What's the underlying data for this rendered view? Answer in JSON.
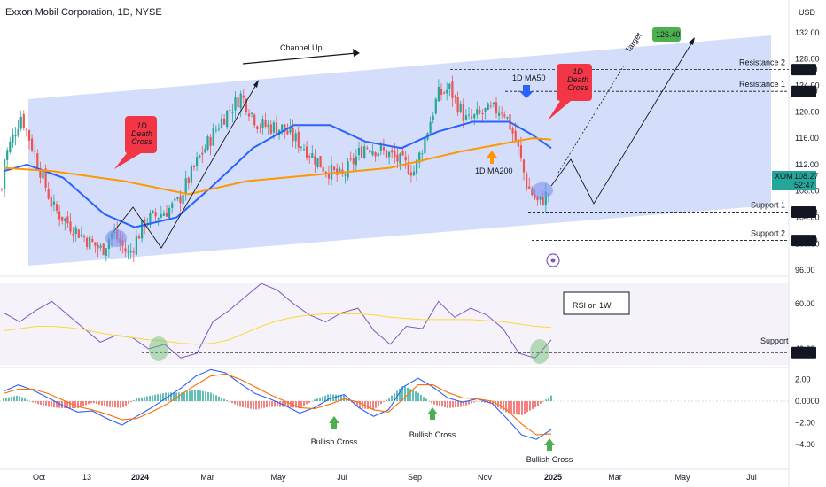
{
  "header": {
    "title": "Exxon Mobil Corporation, 1D, NYSE",
    "currency": "USD"
  },
  "colors": {
    "up": "#26a69a",
    "down": "#ef5350",
    "ma50": "#2962ff",
    "ma200": "#ff9800",
    "channel": "#c5d3f8",
    "rsi": "#7e57c2",
    "rsi_ma": "#fdd835",
    "macd": "#2962ff",
    "signal": "#ff6d00",
    "green_badge": "#4caf50",
    "red_callout": "#f23645"
  },
  "chart_data": [
    {
      "type": "candlestick",
      "title": "Exxon Mobil Corporation, 1D, NYSE",
      "ylim": [
        93,
        134
      ],
      "y_ticks": [
        96.0,
        100.0,
        104.0,
        108.0,
        112.0,
        116.0,
        120.0,
        124.0,
        128.0,
        132.0
      ],
      "x_ticks": [
        "Oct",
        "13",
        "2024",
        "Mar",
        "May",
        "Jul",
        "Sep",
        "Nov",
        "2025",
        "Mar",
        "May",
        "Jul"
      ],
      "close_path": [
        [
          "2023-09-20",
          112.5
        ],
        [
          "2023-10-05",
          119.5
        ],
        [
          "2023-10-18",
          113.0
        ],
        [
          "2023-11-01",
          105.5
        ],
        [
          "2023-11-15",
          103.0
        ],
        [
          "2023-12-01",
          100.5
        ],
        [
          "2023-12-13",
          99.0
        ],
        [
          "2023-12-22",
          101.8
        ],
        [
          "2024-01-05",
          98.2
        ],
        [
          "2024-01-19",
          103.5
        ],
        [
          "2024-02-01",
          104.5
        ],
        [
          "2024-02-15",
          106.0
        ],
        [
          "2024-03-05",
          113.0
        ],
        [
          "2024-03-25",
          119.0
        ],
        [
          "2024-04-10",
          122.5
        ],
        [
          "2024-04-25",
          118.0
        ],
        [
          "2024-05-15",
          117.5
        ],
        [
          "2024-06-01",
          115.0
        ],
        [
          "2024-06-20",
          111.5
        ],
        [
          "2024-07-05",
          110.0
        ],
        [
          "2024-07-25",
          115.0
        ],
        [
          "2024-08-15",
          113.5
        ],
        [
          "2024-09-05",
          111.0
        ],
        [
          "2024-09-15",
          116.5
        ],
        [
          "2024-09-25",
          122.5
        ],
        [
          "2024-10-05",
          123.5
        ],
        [
          "2024-10-20",
          118.5
        ],
        [
          "2024-11-05",
          120.0
        ],
        [
          "2024-11-20",
          120.5
        ],
        [
          "2024-12-01",
          115.5
        ],
        [
          "2024-12-10",
          109.0
        ],
        [
          "2024-12-20",
          106.0
        ],
        [
          "2024-12-31",
          108.27
        ]
      ],
      "series": [
        {
          "name": "1D MA50",
          "values": [
            [
              "2023-09-20",
              111.0
            ],
            [
              "2023-10-10",
              112.0
            ],
            [
              "2023-11-10",
              110.0
            ],
            [
              "2023-12-15",
              104.5
            ],
            [
              "2024-01-10",
              102.5
            ],
            [
              "2024-02-15",
              104.0
            ],
            [
              "2024-03-15",
              108.5
            ],
            [
              "2024-04-20",
              114.5
            ],
            [
              "2024-05-25",
              118.0
            ],
            [
              "2024-06-25",
              118.0
            ],
            [
              "2024-07-25",
              115.5
            ],
            [
              "2024-08-25",
              114.5
            ],
            [
              "2024-09-25",
              117.0
            ],
            [
              "2024-10-25",
              118.5
            ],
            [
              "2024-11-25",
              118.5
            ],
            [
              "2024-12-15",
              116.5
            ],
            [
              "2024-12-31",
              114.5
            ]
          ]
        },
        {
          "name": "1D MA200",
          "values": [
            [
              "2023-09-20",
              111.5
            ],
            [
              "2023-11-01",
              111.0
            ],
            [
              "2024-01-01",
              109.5
            ],
            [
              "2024-02-25",
              107.5
            ],
            [
              "2024-04-15",
              109.5
            ],
            [
              "2024-06-15",
              110.5
            ],
            [
              "2024-08-15",
              111.5
            ],
            [
              "2024-10-15",
              114.0
            ],
            [
              "2024-12-15",
              116.0
            ],
            [
              "2024-12-31",
              115.8
            ]
          ]
        }
      ],
      "annotations": {
        "channel_up": "Channel Up",
        "death_cross_1": "1D\nDeath\nCross",
        "death_cross_2": "1D\nDeath\nCross",
        "ma50": "1D MA50",
        "ma200": "1D MA200",
        "target": "Target",
        "target_value": "126.40"
      },
      "levels": [
        {
          "label": "Resistance 2",
          "value": 126.4,
          "price_label": "126.40"
        },
        {
          "label": "Resistance 1",
          "value": 123.1,
          "price_label": "123.10"
        },
        {
          "label": "Support 1",
          "value": 104.8,
          "price_label": "104.80"
        },
        {
          "label": "Support 2",
          "value": 100.5,
          "price_label": "100.50"
        }
      ],
      "last_price": {
        "symbol": "XOM",
        "price": "108.27",
        "countdown": "52:47"
      }
    },
    {
      "type": "line",
      "title": "RSI on 1W",
      "ylim": [
        30,
        72
      ],
      "y_ticks": [
        40,
        60
      ],
      "y_tick_labels": [
        "40.00",
        "60.00"
      ],
      "series": [
        {
          "values": [
            56,
            52,
            57,
            61,
            55,
            49,
            43,
            46,
            45,
            40,
            42,
            36,
            38,
            52,
            57,
            63,
            69,
            66,
            60,
            55,
            52,
            56,
            58,
            48,
            42,
            50,
            49,
            61,
            54,
            58,
            55,
            49,
            38,
            36,
            44
          ]
        },
        {
          "values": [
            48,
            49,
            50,
            50,
            49.5,
            48.5,
            47,
            46,
            45,
            44,
            43.5,
            42.5,
            42,
            42.5,
            44,
            47,
            50,
            52.5,
            54,
            55,
            55.5,
            55.5,
            55.5,
            55,
            54,
            53.5,
            53,
            53,
            53,
            53,
            52.5,
            52,
            51,
            50,
            49.5
          ]
        }
      ],
      "support": {
        "label": "Support",
        "value": 38.35,
        "price_label": "38.35"
      }
    },
    {
      "type": "line",
      "title": "MACD",
      "ylim": [
        -5,
        3
      ],
      "y_ticks": [
        2,
        0,
        -2,
        -4
      ],
      "y_tick_labels": [
        "2.00",
        "0.0000",
        "−2.00",
        "−4.00"
      ],
      "series": [
        {
          "values": [
            0.9,
            1.5,
            1.0,
            0.3,
            -0.4,
            -1.0,
            -0.9,
            -1.6,
            -2.2,
            -1.4,
            -0.6,
            0.3,
            1.2,
            2.3,
            2.9,
            2.6,
            1.6,
            0.7,
            0.2,
            -0.4,
            -1.1,
            -0.6,
            0.2,
            0.6,
            -0.6,
            -1.4,
            -0.8,
            1.3,
            2.1,
            1.3,
            0.3,
            -0.1,
            0.2,
            -0.2,
            -1.6,
            -3.1,
            -3.5,
            -2.6
          ]
        },
        {
          "values": [
            0.7,
            1.1,
            1.1,
            0.7,
            0.1,
            -0.5,
            -0.8,
            -1.2,
            -1.7,
            -1.6,
            -1.0,
            -0.3,
            0.6,
            1.5,
            2.3,
            2.5,
            2.0,
            1.3,
            0.6,
            0.0,
            -0.6,
            -0.7,
            -0.3,
            0.2,
            -0.1,
            -0.8,
            -1.0,
            0.2,
            1.5,
            1.5,
            0.8,
            0.3,
            0.2,
            0.0,
            -0.8,
            -2.1,
            -3.1,
            -3.0
          ]
        }
      ],
      "annotations": [
        "Bullish Cross",
        "Bullish Cross",
        "Bullish Cross"
      ]
    }
  ]
}
